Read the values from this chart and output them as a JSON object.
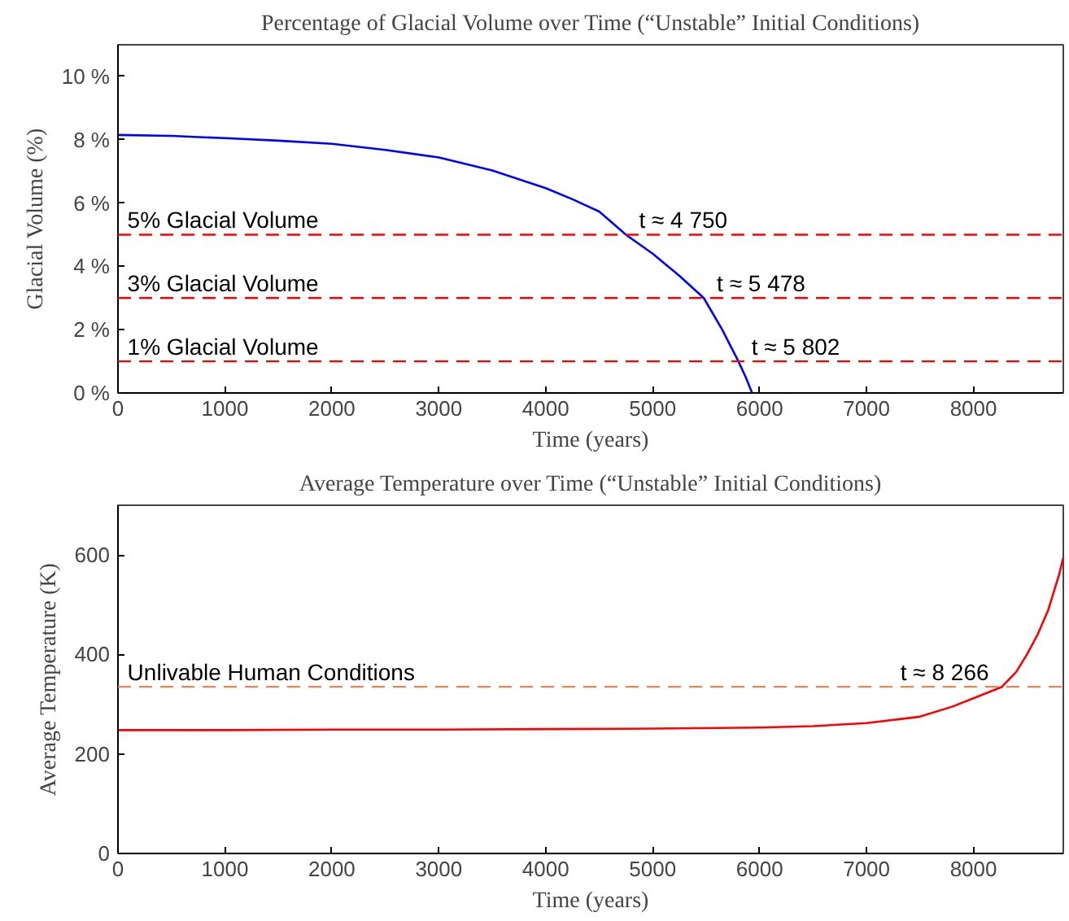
{
  "chart_data": [
    {
      "type": "line",
      "title": "Percentage of Glacial Volume over Time (“Unstable” Initial Conditions)",
      "xlabel": "Time (years)",
      "ylabel": "Glacial Volume (%)",
      "x": [
        0,
        500,
        1000,
        1500,
        2000,
        2500,
        3000,
        3500,
        4000,
        4250,
        4500,
        4750,
        5000,
        5250,
        5478,
        5650,
        5802,
        5870,
        5930
      ],
      "series": [
        {
          "color": "#0000ff",
          "values": [
            8.15,
            8.12,
            8.05,
            7.97,
            7.87,
            7.68,
            7.44,
            7.03,
            6.47,
            6.12,
            5.73,
            5.0,
            4.4,
            3.7,
            3.0,
            2.0,
            1.0,
            0.5,
            0.0
          ]
        }
      ],
      "xlim": [
        0,
        8840
      ],
      "xticks": [
        0,
        1000,
        2000,
        3000,
        4000,
        5000,
        6000,
        7000,
        8000
      ],
      "ylim": [
        0,
        11
      ],
      "yticks": [
        {
          "value": 0,
          "label": "0 %"
        },
        {
          "value": 2,
          "label": "2 %"
        },
        {
          "value": 4,
          "label": "4 %"
        },
        {
          "value": 6,
          "label": "6 %"
        },
        {
          "value": 8,
          "label": "8 %"
        },
        {
          "value": 10,
          "label": "10 %"
        }
      ],
      "ref_lines": [
        {
          "axis": "y",
          "value": 5,
          "label": "5% Glacial Volume",
          "color": "#ff0000",
          "line_style": "dashed"
        },
        {
          "axis": "y",
          "value": 3,
          "label": "3% Glacial Volume",
          "color": "#ff0000",
          "line_style": "dashed"
        },
        {
          "axis": "y",
          "value": 1,
          "label": "1% Glacial Volume",
          "color": "#ff0000",
          "line_style": "dashed"
        }
      ],
      "annotations": [
        {
          "text": "t ≈ 4 750",
          "x": 4750,
          "y": 5
        },
        {
          "text": "t ≈ 5 478",
          "x": 5478,
          "y": 3
        },
        {
          "text": "t ≈ 5 802",
          "x": 5802,
          "y": 1
        }
      ],
      "grid": false,
      "line_style": "solid"
    },
    {
      "type": "line",
      "title": "Average Temperature over Time (“Unstable” Initial Conditions)",
      "xlabel": "Time (years)",
      "ylabel": "Average Temperature (K)",
      "x": [
        0,
        1000,
        2000,
        3000,
        4000,
        5000,
        6000,
        6500,
        7000,
        7500,
        7800,
        8000,
        8266,
        8400,
        8500,
        8600,
        8700,
        8800,
        8840
      ],
      "series": [
        {
          "color": "#ff0000",
          "values": [
            248,
            248,
            249,
            249,
            250,
            251,
            253,
            256,
            262,
            275,
            295,
            312,
            335,
            365,
            400,
            440,
            490,
            560,
            595
          ]
        }
      ],
      "xlim": [
        0,
        8840
      ],
      "xticks": [
        0,
        1000,
        2000,
        3000,
        4000,
        5000,
        6000,
        7000,
        8000
      ],
      "ylim": [
        0,
        700
      ],
      "yticks": [
        0,
        200,
        400,
        600
      ],
      "ref_lines": [
        {
          "axis": "y",
          "value": 335,
          "label": "Unlivable Human Conditions",
          "color": "#e8845a",
          "line_style": "dashed"
        }
      ],
      "annotations": [
        {
          "text": "t ≈ 8 266",
          "x": 8266,
          "y": 335
        }
      ],
      "grid": false,
      "line_style": "solid"
    }
  ]
}
